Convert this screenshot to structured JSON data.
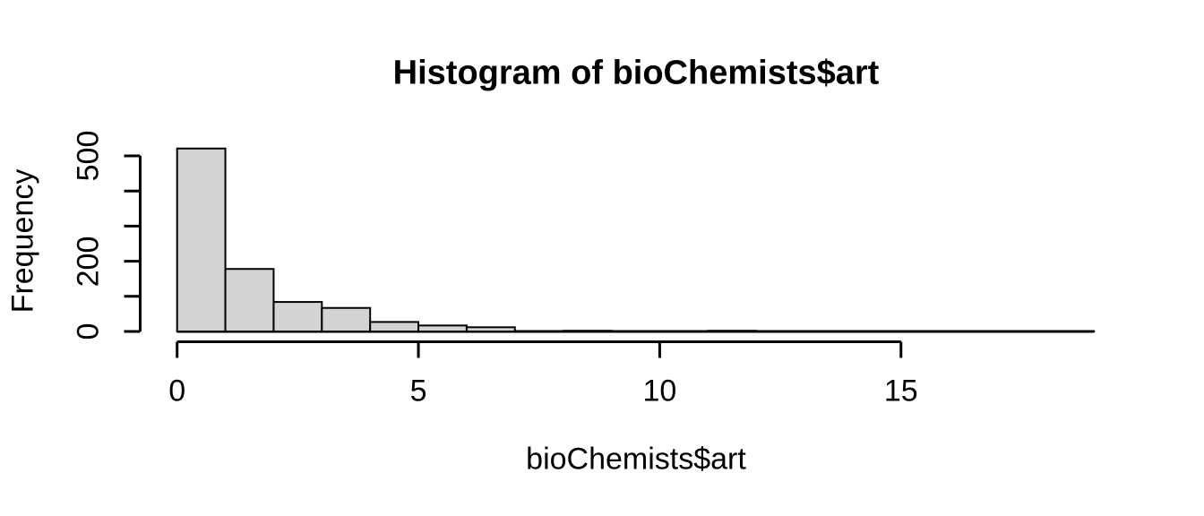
{
  "figure": {
    "background": "#ffffff"
  },
  "chart_data": {
    "type": "bar",
    "chart_kind": "histogram",
    "title": "Histogram of bioChemists$art",
    "xlabel": "bioChemists$art",
    "ylabel": "Frequency",
    "bin_start": 0,
    "bin_width": 1,
    "bin_edges": [
      0,
      1,
      2,
      3,
      4,
      5,
      6,
      7,
      8,
      9,
      10,
      11,
      12,
      13,
      14,
      15,
      16,
      17,
      18,
      19
    ],
    "counts": [
      521,
      178,
      84,
      67,
      27,
      17,
      12,
      1,
      2,
      0,
      1,
      2,
      0,
      0,
      0,
      1,
      0,
      0,
      1
    ],
    "xlim": [
      0,
      19
    ],
    "ylim": [
      0,
      500
    ],
    "x_ticks": [
      0,
      5,
      10,
      15
    ],
    "x_tick_labels": [
      "0",
      "5",
      "10",
      "15"
    ],
    "y_ticks": [
      0,
      100,
      200,
      300,
      400,
      500
    ],
    "y_labeled_ticks": [
      0,
      200,
      500
    ],
    "y_tick_labels": [
      "0",
      "200",
      "500"
    ],
    "bar_fill": "#d3d3d3",
    "bar_border": "#000000",
    "axis_color": "#000000",
    "text_color": "#000000",
    "grid": false,
    "legend_position": "none"
  }
}
